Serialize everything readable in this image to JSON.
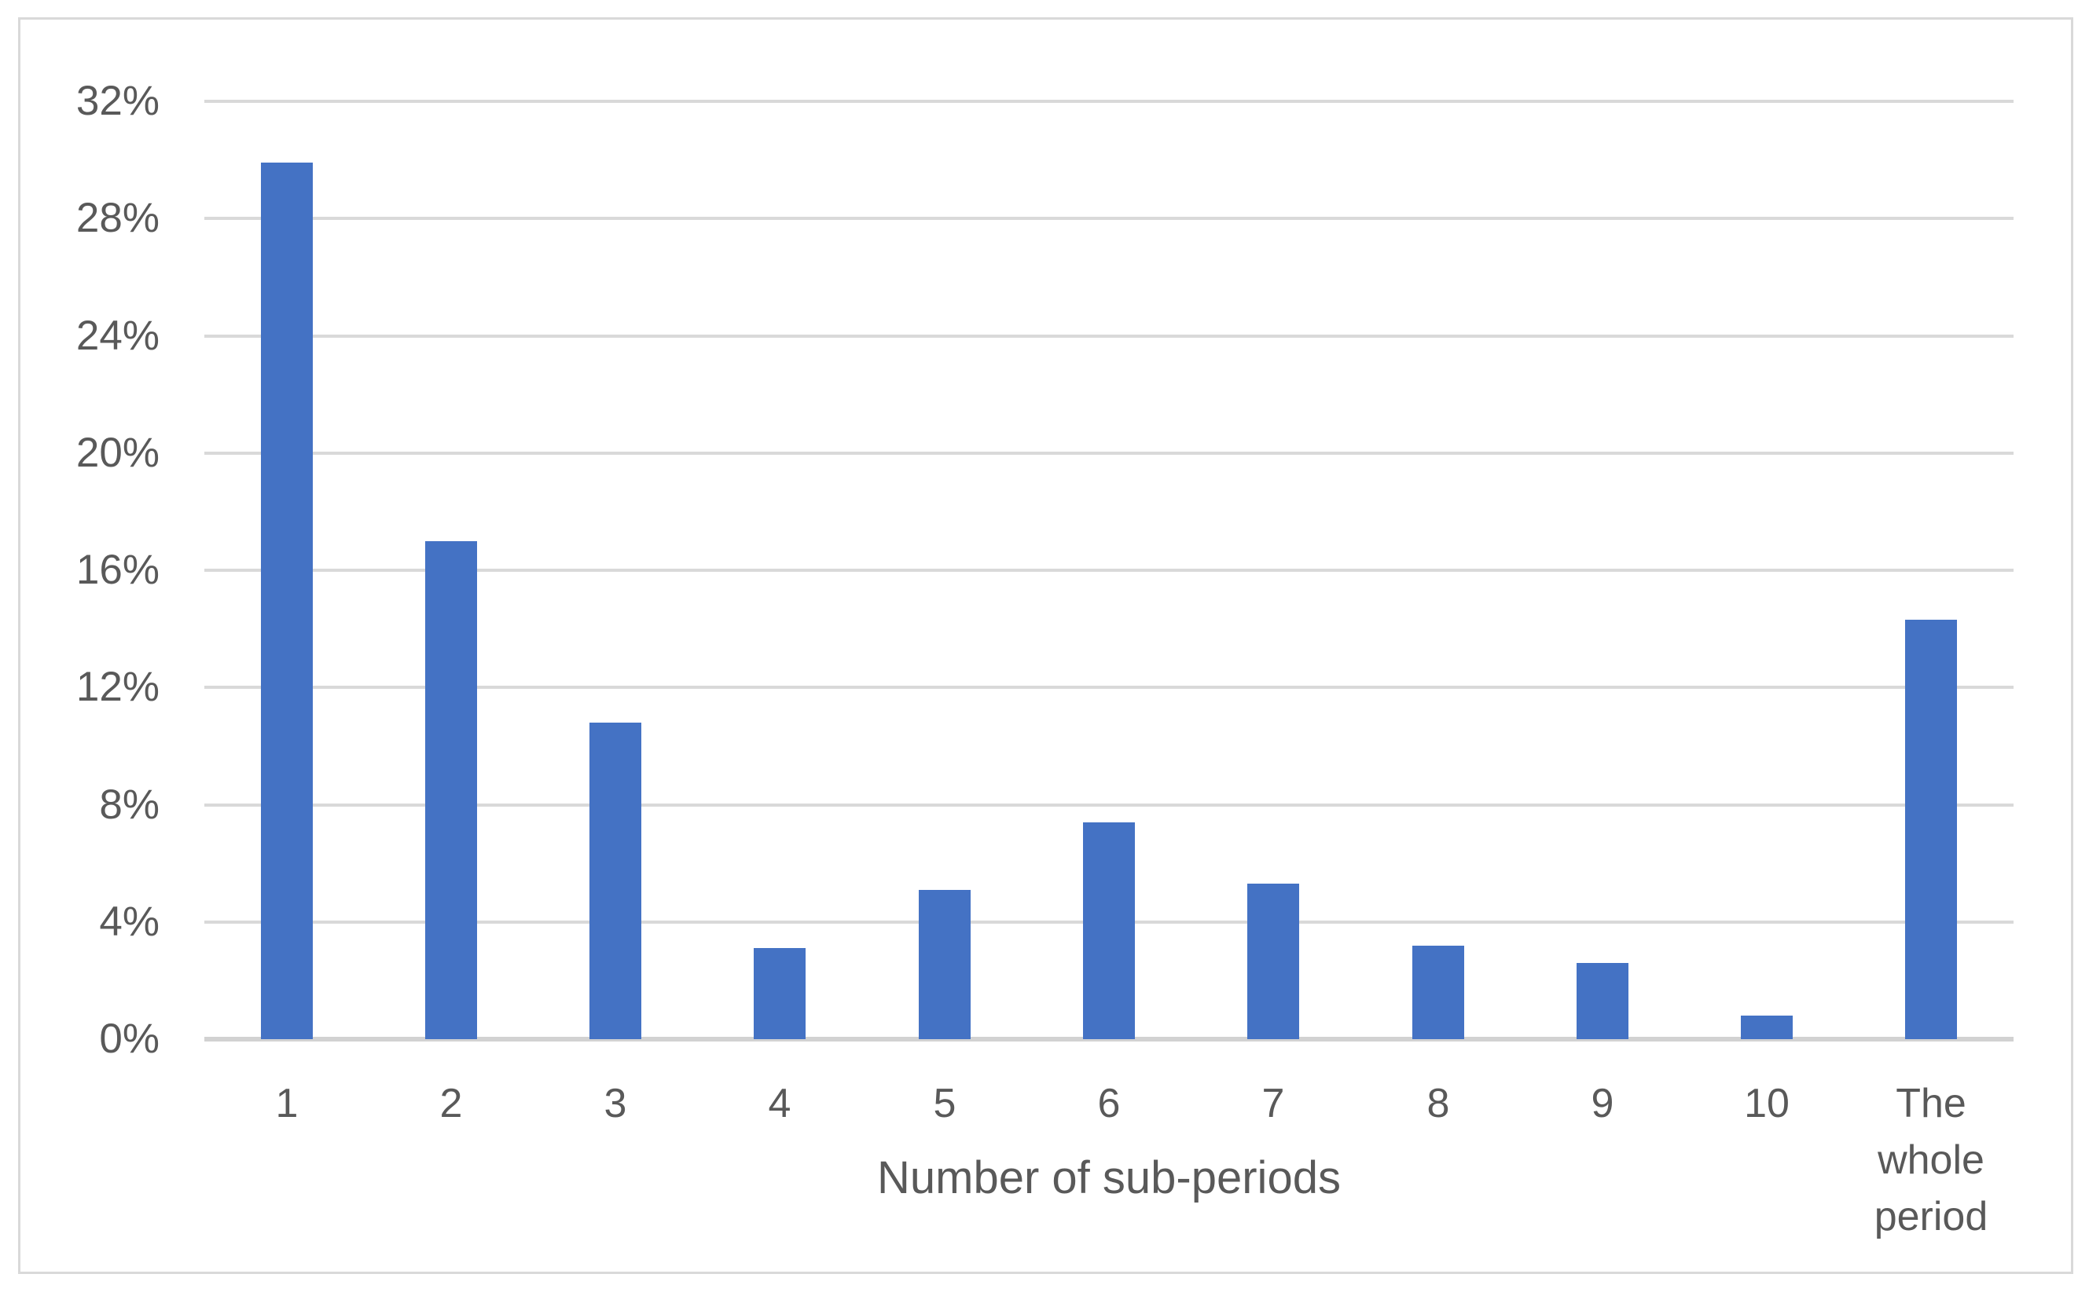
{
  "figure": {
    "background": "#FFFFFF",
    "border_color": "#D9D9D9"
  },
  "chart_data": {
    "type": "bar",
    "title": "",
    "xlabel": "Number of sub-periods",
    "ylabel": "",
    "categories": [
      "1",
      "2",
      "3",
      "4",
      "5",
      "6",
      "7",
      "8",
      "9",
      "10",
      "The whole period"
    ],
    "values": [
      29.9,
      17.0,
      10.8,
      3.1,
      5.1,
      7.4,
      5.3,
      3.2,
      2.6,
      0.8,
      14.3
    ],
    "value_unit": "%",
    "ylim": [
      0,
      32
    ],
    "ytick_step": 4,
    "ytick_labels": [
      "0%",
      "4%",
      "8%",
      "12%",
      "16%",
      "20%",
      "24%",
      "28%",
      "32%"
    ],
    "grid": true,
    "legend": "none",
    "bar_color": "#4472C4",
    "gridline_color": "#D9D9D9",
    "axis_line_color": "#D2D2D2",
    "text_color": "#595959"
  }
}
